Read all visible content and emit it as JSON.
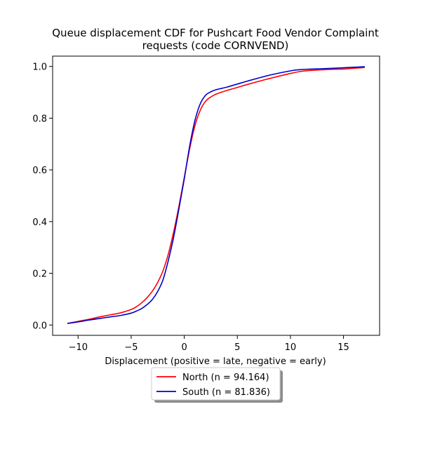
{
  "chart_data": {
    "type": "line",
    "title_lines": [
      "Queue displacement CDF for Pushcart Food Vendor Complaint",
      "requests (code CORNVEND)"
    ],
    "xlabel": "Displacement (positive = late, negative = early)",
    "ylabel": "",
    "xlim": [
      -12.4,
      18.4
    ],
    "ylim": [
      -0.04,
      1.04
    ],
    "xticks": [
      -10,
      -5,
      0,
      5,
      10,
      15
    ],
    "xtick_labels": [
      "−10",
      "−5",
      "0",
      "5",
      "10",
      "15"
    ],
    "yticks": [
      0.0,
      0.2,
      0.4,
      0.6,
      0.8,
      1.0
    ],
    "ytick_labels": [
      "0.0",
      "0.2",
      "0.4",
      "0.6",
      "0.8",
      "1.0"
    ],
    "grid": false,
    "legend_position": "below plot, centered",
    "series": [
      {
        "name": "North (n = 94.164)",
        "color": "#ff0000",
        "x": [
          -11,
          -10,
          -9,
          -8,
          -7,
          -6,
          -5,
          -4.5,
          -4,
          -3.5,
          -3,
          -2.5,
          -2,
          -1.5,
          -1,
          -0.5,
          0,
          0.5,
          1,
          1.5,
          2,
          2.5,
          3,
          4,
          5,
          6,
          8,
          10,
          11,
          12,
          14,
          15,
          16,
          17
        ],
        "y": [
          0.006,
          0.014,
          0.022,
          0.031,
          0.039,
          0.047,
          0.06,
          0.071,
          0.086,
          0.106,
          0.131,
          0.165,
          0.21,
          0.275,
          0.36,
          0.46,
          0.57,
          0.68,
          0.77,
          0.83,
          0.865,
          0.882,
          0.893,
          0.907,
          0.919,
          0.931,
          0.953,
          0.973,
          0.981,
          0.985,
          0.989,
          0.99,
          0.993,
          0.996
        ]
      },
      {
        "name": "South (n = 81.836)",
        "color": "#0000cc",
        "x": [
          -11,
          -10,
          -9,
          -8,
          -7,
          -6,
          -5,
          -4.5,
          -4,
          -3.5,
          -3,
          -2.5,
          -2,
          -1.5,
          -1,
          -0.5,
          0,
          0.5,
          1,
          1.5,
          2,
          2.5,
          3,
          4,
          5,
          6,
          8,
          10,
          11,
          12,
          14,
          15,
          16,
          17
        ],
        "y": [
          0.006,
          0.012,
          0.019,
          0.025,
          0.031,
          0.037,
          0.046,
          0.054,
          0.064,
          0.079,
          0.099,
          0.13,
          0.175,
          0.25,
          0.34,
          0.45,
          0.565,
          0.69,
          0.79,
          0.855,
          0.888,
          0.902,
          0.91,
          0.92,
          0.932,
          0.944,
          0.966,
          0.983,
          0.988,
          0.99,
          0.993,
          0.995,
          0.997,
          0.999
        ]
      }
    ]
  }
}
